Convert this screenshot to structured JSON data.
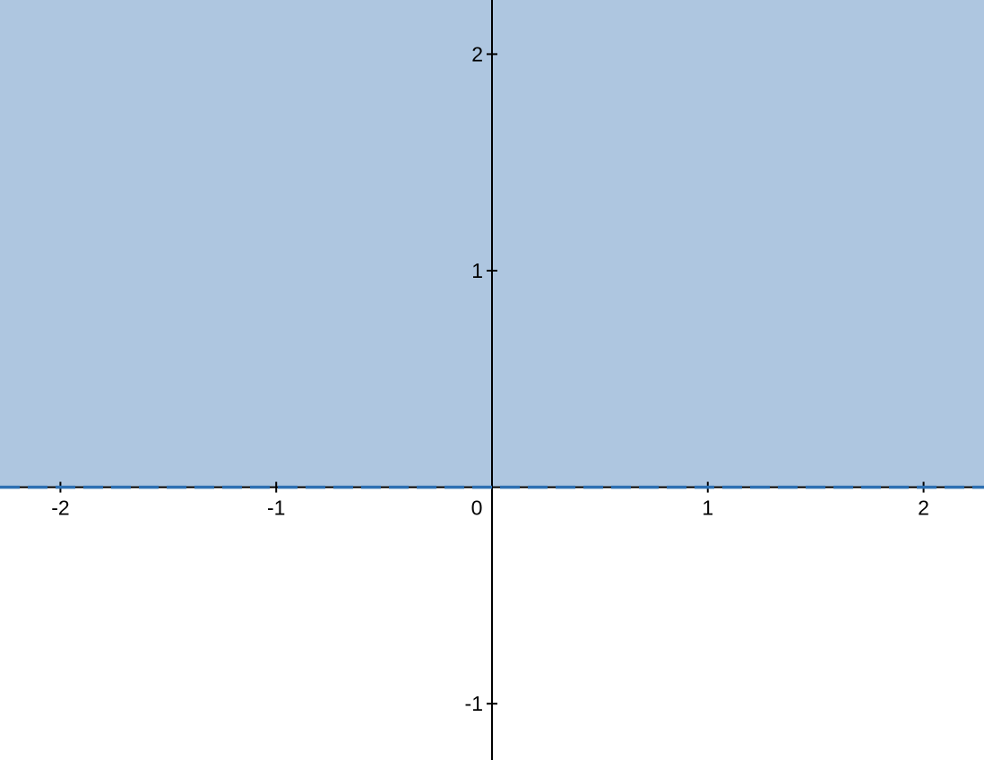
{
  "chart_data": {
    "type": "area",
    "title": "",
    "xlabel": "",
    "ylabel": "",
    "xlim": [
      -2.28,
      2.28
    ],
    "ylim": [
      -1.26,
      2.25
    ],
    "grid": false,
    "legend": "none",
    "x_ticks": [
      "-2",
      "-1",
      "1",
      "2"
    ],
    "y_ticks": [
      "2",
      "1",
      "-1"
    ],
    "origin_label": "0",
    "boundary": {
      "equation_y": 0,
      "style": "dashed",
      "color": "#2d70b3"
    },
    "shaded_region": {
      "inequality": "y > 0",
      "color": "#aec6e0"
    },
    "colors": {
      "axis": "#000000",
      "shade": "#aec6e0",
      "boundary": "#2d70b3"
    }
  }
}
